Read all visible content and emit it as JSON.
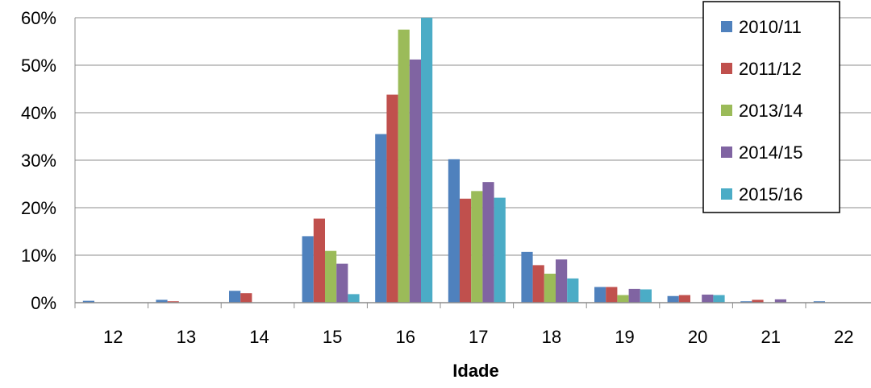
{
  "chart_data": {
    "type": "bar",
    "title": "",
    "xlabel": "Idade",
    "ylabel": "",
    "categories": [
      "12",
      "13",
      "14",
      "15",
      "16",
      "17",
      "18",
      "19",
      "20",
      "21",
      "22"
    ],
    "yticks": [
      "0%",
      "10%",
      "20%",
      "30%",
      "40%",
      "50%",
      "60%"
    ],
    "ylim": [
      0,
      60
    ],
    "value_unit": "%",
    "grid": true,
    "legend_position": "top-right",
    "series": [
      {
        "name": "2010/11",
        "color": "#4F81BD",
        "values": [
          0.4,
          0.6,
          2.5,
          14.0,
          35.5,
          30.2,
          10.7,
          3.3,
          1.4,
          0.3,
          0.3
        ]
      },
      {
        "name": "2011/12",
        "color": "#C0504D",
        "values": [
          0.0,
          0.3,
          2.0,
          17.7,
          43.8,
          21.9,
          7.9,
          3.3,
          1.6,
          0.6,
          0.0
        ]
      },
      {
        "name": "2013/14",
        "color": "#9BBB59",
        "values": [
          0.0,
          0.0,
          0.0,
          10.9,
          57.5,
          23.5,
          6.1,
          1.6,
          0.0,
          0.0,
          0.0
        ]
      },
      {
        "name": "2014/15",
        "color": "#8064A2",
        "values": [
          0.0,
          0.0,
          0.0,
          8.2,
          51.2,
          25.4,
          9.1,
          2.9,
          1.7,
          0.7,
          0.0
        ]
      },
      {
        "name": "2015/16",
        "color": "#4BACC6",
        "values": [
          0.0,
          0.0,
          0.0,
          1.8,
          60.0,
          22.1,
          5.1,
          2.8,
          1.6,
          0.0,
          0.0
        ]
      }
    ]
  }
}
